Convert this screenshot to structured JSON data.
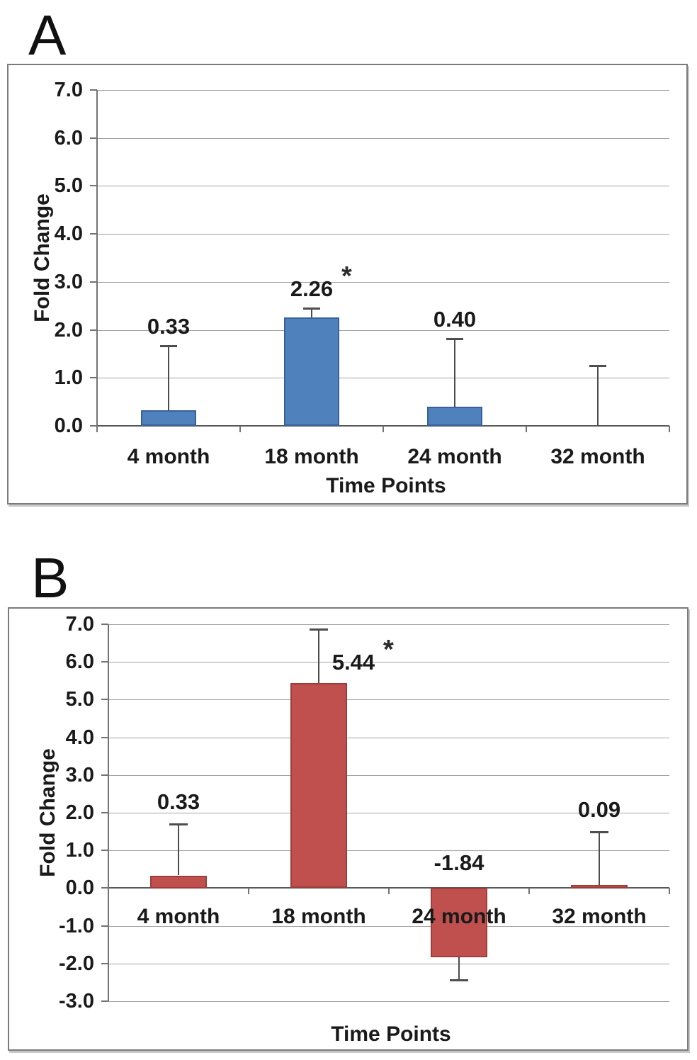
{
  "glyphs": {
    "asterisk": "*"
  },
  "chart_data": [
    {
      "panel_label": "A",
      "type": "bar",
      "xlabel": "Time Points",
      "ylabel": "Fold Change",
      "categories": [
        "4 month",
        "18 month",
        "24 month",
        "32 month"
      ],
      "values": [
        0.33,
        2.26,
        0.4,
        0.0
      ],
      "value_labels": [
        "0.33",
        "2.26",
        "0.40",
        ""
      ],
      "starred": [
        false,
        true,
        false,
        false
      ],
      "error_whisker_to": [
        1.67,
        2.45,
        1.82,
        1.26
      ],
      "ylim": [
        0,
        7
      ],
      "ytick_step": 1.0,
      "ytick_labels": [
        "7.0",
        "6.0",
        "5.0",
        "4.0",
        "3.0",
        "2.0",
        "1.0",
        "0.0"
      ],
      "grid": true,
      "legend": "none",
      "bar_color": "#4F81BD",
      "bar_border_color": "#38619C"
    },
    {
      "panel_label": "B",
      "type": "bar",
      "xlabel": "Time Points",
      "ylabel": "Fold Change",
      "categories": [
        "4 month",
        "18 month",
        "24 month",
        "32 month"
      ],
      "values": [
        0.33,
        5.44,
        -1.84,
        0.09
      ],
      "value_labels": [
        "0.33",
        "5.44",
        "-1.84",
        "0.09"
      ],
      "starred": [
        false,
        true,
        false,
        false
      ],
      "error_whisker_to": [
        1.69,
        6.86,
        -2.44,
        1.5
      ],
      "ylim": [
        -3,
        7
      ],
      "ytick_step": 1.0,
      "ytick_labels": [
        "7.0",
        "6.0",
        "5.0",
        "4.0",
        "3.0",
        "2.0",
        "1.0",
        "0.0",
        "-1.0",
        "-2.0",
        "-3.0"
      ],
      "grid": true,
      "legend": "none",
      "bar_color": "#C0504D",
      "bar_border_color": "#9E3D3B"
    }
  ]
}
